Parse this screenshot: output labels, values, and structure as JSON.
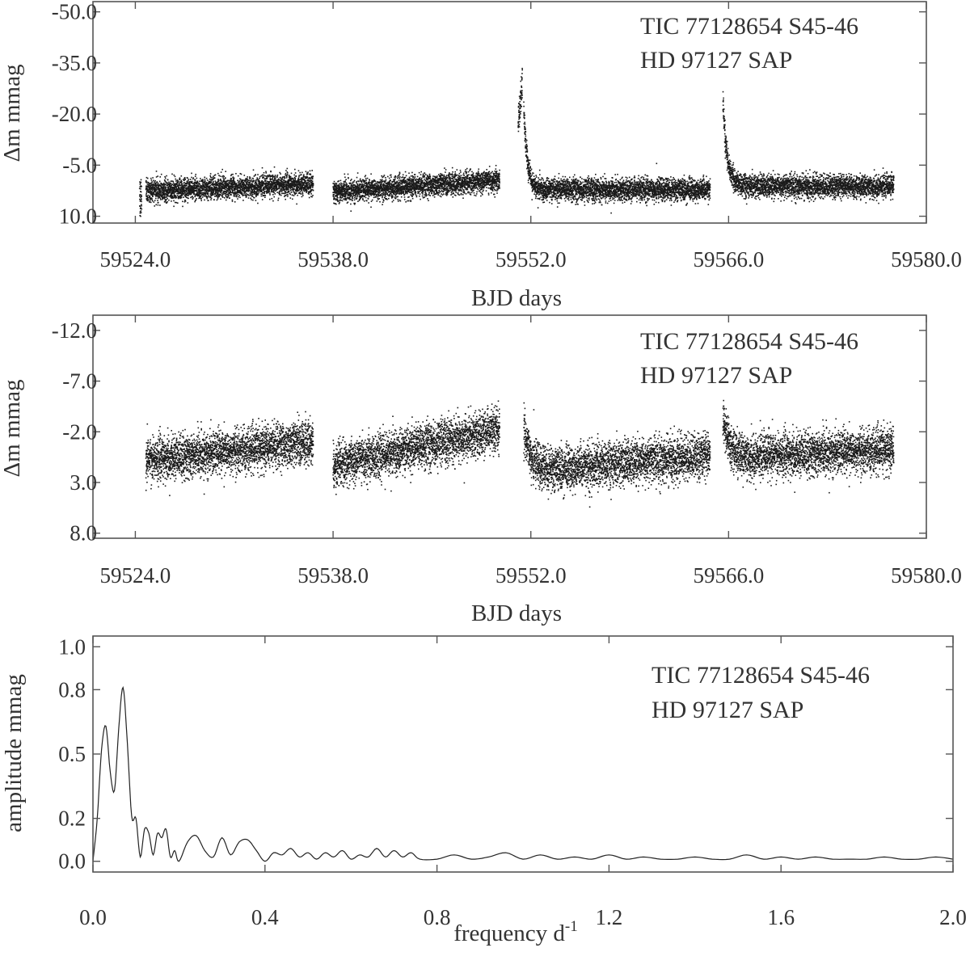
{
  "chart_data": [
    {
      "type": "scatter",
      "annotation": [
        "TIC 77128654 S45-46",
        "HD 97127 SAP"
      ],
      "xlabel": "BJD days",
      "ylabel": "Δm mmag",
      "xlim": [
        59521.0,
        59580.0
      ],
      "ylim": [
        12.0,
        -53.0
      ],
      "y_inverted": true,
      "x_ticks": [
        "59524.0",
        "59538.0",
        "59552.0",
        "59566.0",
        "59580.0"
      ],
      "y_ticks": [
        "-50.0",
        "-35.0",
        "-20.0",
        "-5.0",
        "10.0"
      ],
      "series": [
        {
          "segments": [
            {
              "x_range": [
                59524.3,
                59524.45
              ],
              "baseline": 5.5,
              "scatter": 3.5
            },
            {
              "x_range": [
                59524.75,
                59536.6
              ],
              "baseline_start": 2.5,
              "baseline_end": 0.5,
              "scatter": 1.6
            },
            {
              "x_range": [
                59538.0,
                59549.8
              ],
              "baseline_start": 2.8,
              "baseline_end": -0.5,
              "scatter": 1.6
            },
            {
              "x_range": [
                59551.1,
                59551.4
              ],
              "baseline_start": -17.0,
              "baseline_end": -30.0,
              "scatter": 2.5
            },
            {
              "x_range": [
                59551.5,
                59564.7
              ],
              "baseline": 2.2,
              "flare_peak": -22.0,
              "flare_decay_days": 0.25,
              "scatter": 1.6
            },
            {
              "x_range": [
                59565.6,
                59577.7
              ],
              "baseline": 1.2,
              "flare_peak": -24.0,
              "flare_decay_days": 0.3,
              "scatter": 1.6
            }
          ]
        }
      ]
    },
    {
      "type": "scatter",
      "annotation": [
        "TIC 77128654 S45-46",
        "HD 97127 SAP"
      ],
      "xlabel": "BJD days",
      "ylabel": "Δm mmag",
      "xlim": [
        59521.0,
        59580.0
      ],
      "ylim": [
        8.5,
        -13.5
      ],
      "y_inverted": true,
      "x_ticks": [
        "59524.0",
        "59538.0",
        "59552.0",
        "59566.0",
        "59580.0"
      ],
      "y_ticks": [
        "-12.0",
        "-7.0",
        "-2.0",
        "3.0",
        "8.0"
      ],
      "series": [
        {
          "segments": [
            {
              "x_range": [
                59524.75,
                59536.6
              ],
              "baseline_start": 0.8,
              "baseline_end": -1.0,
              "scatter": 1.05
            },
            {
              "x_range": [
                59538.0,
                59549.8
              ],
              "baseline_start": 1.3,
              "baseline_end": -2.2,
              "scatter": 1.05
            },
            {
              "x_range": [
                59551.5,
                59564.7
              ],
              "baseline_start": 2.0,
              "baseline_end": 0.3,
              "flare_peak": -2.3,
              "flare_decay_days": 0.5,
              "scatter": 1.05
            },
            {
              "x_range": [
                59565.6,
                59577.7
              ],
              "baseline_start": 0.6,
              "baseline_end": -0.3,
              "flare_peak": -3.2,
              "flare_decay_days": 0.5,
              "scatter": 1.05
            }
          ]
        }
      ]
    },
    {
      "type": "line",
      "annotation": [
        "TIC 77128654 S45-46",
        "HD 97127 SAP"
      ],
      "xlabel": "frequency d",
      "xlabel_sup": "-1",
      "ylabel": "amplitude mmag",
      "xlim": [
        0.0,
        2.0
      ],
      "ylim": [
        -0.05,
        1.05
      ],
      "x_ticks": [
        "0.0",
        "0.4",
        "0.8",
        "1.2",
        "1.6",
        "2.0"
      ],
      "y_ticks": [
        "1.0",
        "0.8",
        "0.5",
        "0.2",
        "0.0"
      ],
      "series": [
        {
          "x": [
            0.0,
            0.01,
            0.02,
            0.03,
            0.04,
            0.05,
            0.06,
            0.07,
            0.08,
            0.09,
            0.1,
            0.11,
            0.12,
            0.13,
            0.14,
            0.15,
            0.16,
            0.17,
            0.18,
            0.19,
            0.2,
            0.22,
            0.24,
            0.26,
            0.28,
            0.3,
            0.32,
            0.34,
            0.36,
            0.38,
            0.4,
            0.42,
            0.44,
            0.46,
            0.48,
            0.5,
            0.52,
            0.54,
            0.56,
            0.58,
            0.6,
            0.62,
            0.64,
            0.66,
            0.68,
            0.7,
            0.72,
            0.74,
            0.76,
            0.8,
            0.84,
            0.88,
            0.92,
            0.96,
            1.0,
            1.04,
            1.08,
            1.12,
            1.16,
            1.2,
            1.24,
            1.28,
            1.32,
            1.36,
            1.4,
            1.44,
            1.48,
            1.52,
            1.56,
            1.6,
            1.64,
            1.68,
            1.72,
            1.76,
            1.8,
            1.84,
            1.88,
            1.92,
            1.96,
            2.0
          ],
          "y": [
            0.0,
            0.2,
            0.52,
            0.63,
            0.42,
            0.33,
            0.62,
            0.81,
            0.55,
            0.21,
            0.2,
            0.02,
            0.15,
            0.13,
            0.03,
            0.13,
            0.11,
            0.15,
            0.02,
            0.05,
            0.0,
            0.09,
            0.12,
            0.05,
            0.02,
            0.11,
            0.03,
            0.09,
            0.1,
            0.05,
            0.0,
            0.04,
            0.03,
            0.06,
            0.02,
            0.04,
            0.01,
            0.04,
            0.02,
            0.05,
            0.01,
            0.03,
            0.02,
            0.06,
            0.02,
            0.05,
            0.02,
            0.04,
            0.01,
            0.01,
            0.03,
            0.01,
            0.02,
            0.04,
            0.01,
            0.03,
            0.01,
            0.02,
            0.01,
            0.03,
            0.01,
            0.02,
            0.01,
            0.01,
            0.02,
            0.01,
            0.01,
            0.03,
            0.01,
            0.02,
            0.01,
            0.02,
            0.01,
            0.01,
            0.01,
            0.02,
            0.01,
            0.01,
            0.02,
            0.01
          ]
        }
      ]
    }
  ]
}
